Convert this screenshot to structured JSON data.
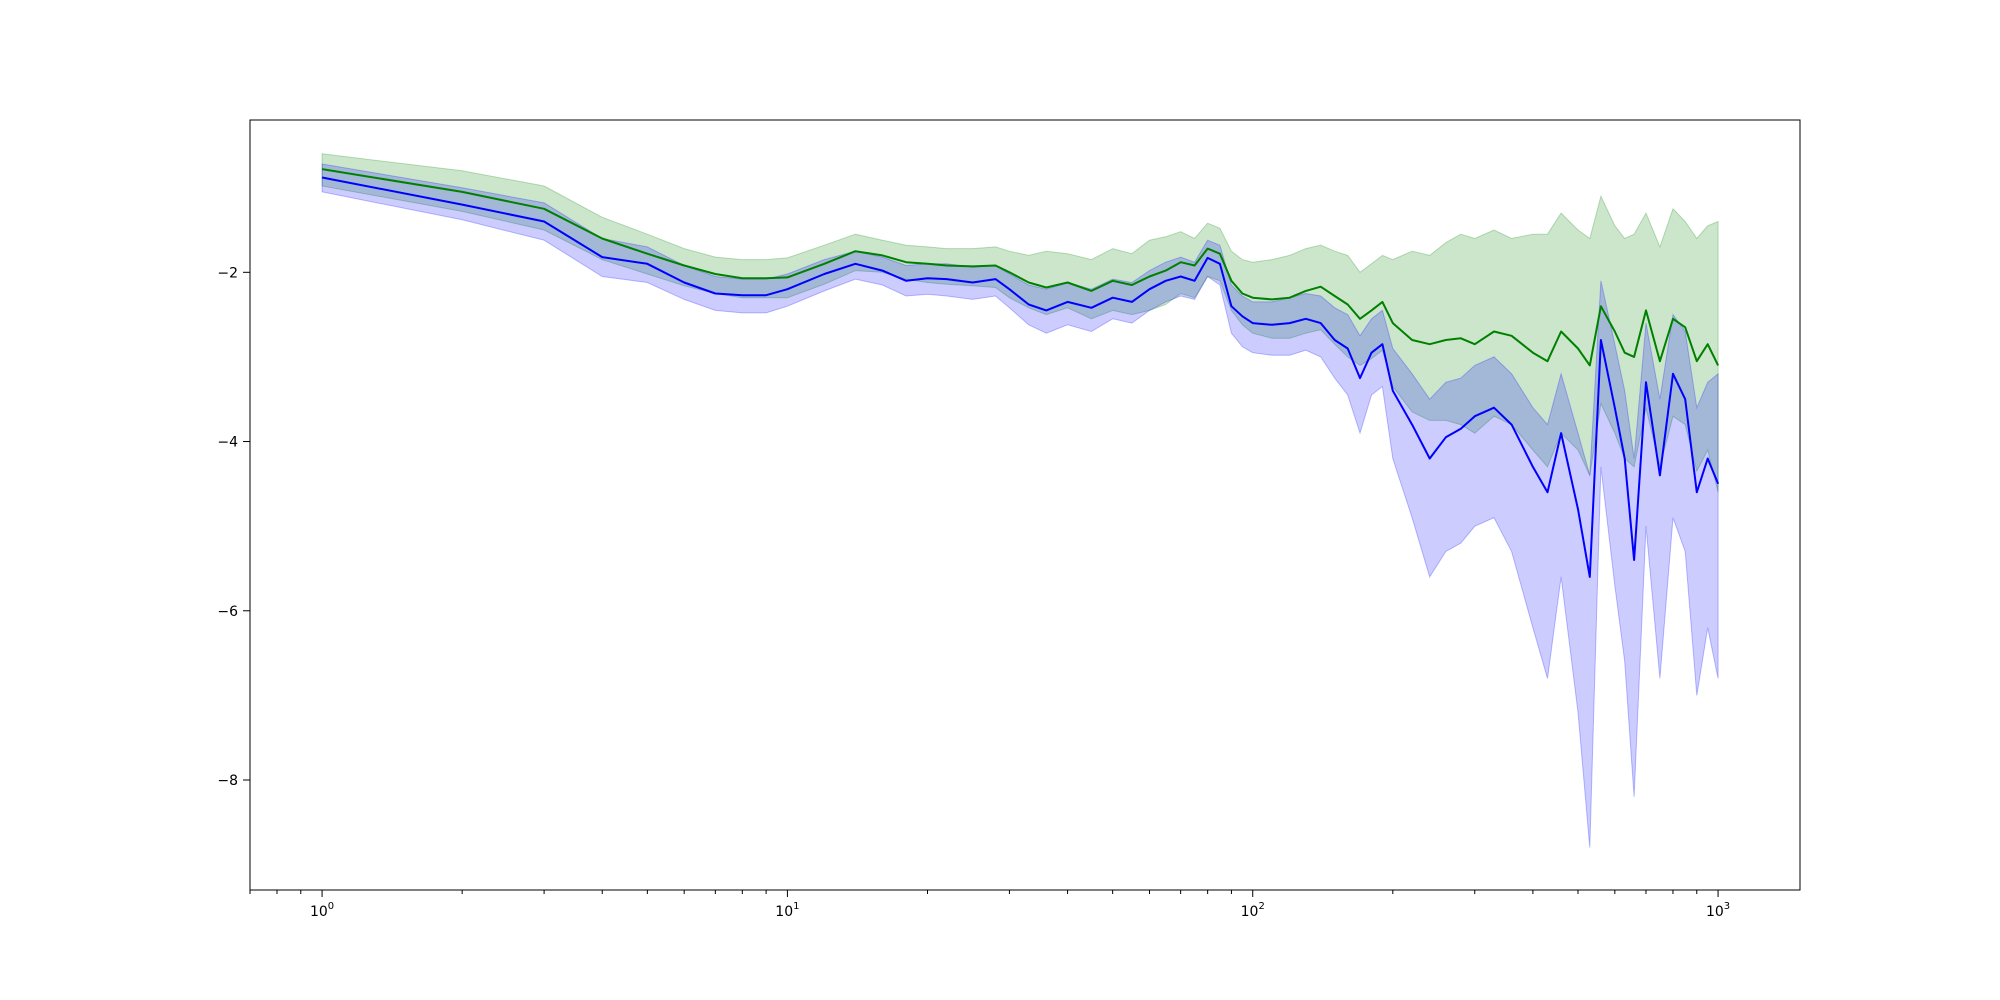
{
  "chart_data": {
    "type": "line",
    "title": "",
    "xlabel": "",
    "ylabel": "",
    "xscale": "log",
    "xlim": [
      0.7,
      1500
    ],
    "ylim": [
      -9.3,
      -0.2
    ],
    "grid": false,
    "legend": "none",
    "x_ticks": [
      {
        "value": 1,
        "base": "10",
        "exp": "0"
      },
      {
        "value": 10,
        "base": "10",
        "exp": "1"
      },
      {
        "value": 100,
        "base": "10",
        "exp": "2"
      },
      {
        "value": 1000,
        "base": "10",
        "exp": "3"
      }
    ],
    "y_ticks": [
      {
        "value": -2,
        "label": "−2"
      },
      {
        "value": -4,
        "label": "−4"
      },
      {
        "value": -6,
        "label": "−6"
      },
      {
        "value": -8,
        "label": "−8"
      }
    ],
    "series": [
      {
        "color": "#008000",
        "band_color": "#008000",
        "band_opacity": 0.2,
        "x": [
          1,
          2,
          3,
          4,
          5,
          6,
          7,
          8,
          9,
          10,
          12,
          14,
          16,
          18,
          20,
          22,
          25,
          28,
          30,
          33,
          36,
          40,
          45,
          50,
          55,
          60,
          65,
          70,
          75,
          80,
          85,
          90,
          95,
          100,
          110,
          120,
          130,
          140,
          150,
          160,
          170,
          180,
          190,
          200,
          220,
          240,
          260,
          280,
          300,
          330,
          360,
          400,
          430,
          460,
          500,
          530,
          560,
          600,
          630,
          660,
          700,
          750,
          800,
          850,
          900,
          950,
          1000
        ],
        "y": [
          -0.78,
          -1.05,
          -1.25,
          -1.6,
          -1.78,
          -1.92,
          -2.02,
          -2.07,
          -2.07,
          -2.06,
          -1.9,
          -1.75,
          -1.8,
          -1.88,
          -1.9,
          -1.92,
          -1.93,
          -1.92,
          -2.0,
          -2.12,
          -2.18,
          -2.12,
          -2.22,
          -2.1,
          -2.15,
          -2.05,
          -1.98,
          -1.88,
          -1.92,
          -1.72,
          -1.78,
          -2.1,
          -2.25,
          -2.3,
          -2.32,
          -2.3,
          -2.22,
          -2.17,
          -2.28,
          -2.38,
          -2.55,
          -2.45,
          -2.35,
          -2.6,
          -2.8,
          -2.85,
          -2.8,
          -2.78,
          -2.85,
          -2.7,
          -2.75,
          -2.95,
          -3.05,
          -2.7,
          -2.9,
          -3.1,
          -2.4,
          -2.7,
          -2.95,
          -3.0,
          -2.45,
          -3.05,
          -2.55,
          -2.65,
          -3.05,
          -2.85,
          -3.1
        ],
        "upper": [
          -0.6,
          -0.8,
          -0.98,
          -1.35,
          -1.55,
          -1.72,
          -1.82,
          -1.85,
          -1.85,
          -1.83,
          -1.68,
          -1.55,
          -1.62,
          -1.68,
          -1.7,
          -1.72,
          -1.72,
          -1.7,
          -1.75,
          -1.8,
          -1.75,
          -1.78,
          -1.85,
          -1.72,
          -1.78,
          -1.62,
          -1.58,
          -1.52,
          -1.6,
          -1.42,
          -1.48,
          -1.75,
          -1.85,
          -1.88,
          -1.85,
          -1.8,
          -1.72,
          -1.68,
          -1.75,
          -1.8,
          -2.0,
          -1.9,
          -1.8,
          -1.85,
          -1.75,
          -1.8,
          -1.65,
          -1.55,
          -1.6,
          -1.5,
          -1.6,
          -1.55,
          -1.55,
          -1.3,
          -1.5,
          -1.6,
          -1.1,
          -1.45,
          -1.6,
          -1.55,
          -1.3,
          -1.7,
          -1.25,
          -1.4,
          -1.6,
          -1.45,
          -1.4
        ],
        "lower": [
          -0.98,
          -1.28,
          -1.5,
          -1.85,
          -2.02,
          -2.16,
          -2.25,
          -2.3,
          -2.3,
          -2.3,
          -2.14,
          -1.98,
          -2.0,
          -2.08,
          -2.12,
          -2.14,
          -2.16,
          -2.18,
          -2.3,
          -2.42,
          -2.5,
          -2.42,
          -2.55,
          -2.45,
          -2.5,
          -2.45,
          -2.38,
          -2.25,
          -2.3,
          -2.05,
          -2.1,
          -2.45,
          -2.62,
          -2.72,
          -2.78,
          -2.78,
          -2.72,
          -2.68,
          -2.85,
          -3.0,
          -3.1,
          -3.02,
          -2.92,
          -3.35,
          -3.65,
          -3.75,
          -3.75,
          -3.8,
          -3.9,
          -3.7,
          -3.8,
          -4.1,
          -4.3,
          -3.9,
          -4.1,
          -4.4,
          -3.55,
          -3.9,
          -4.2,
          -4.3,
          -3.6,
          -4.3,
          -3.7,
          -3.8,
          -4.35,
          -4.1,
          -4.6
        ]
      },
      {
        "color": "#0000ff",
        "band_color": "#0000ff",
        "band_opacity": 0.2,
        "x": [
          1,
          2,
          3,
          4,
          5,
          6,
          7,
          8,
          9,
          10,
          12,
          14,
          16,
          18,
          20,
          22,
          25,
          28,
          30,
          33,
          36,
          40,
          45,
          50,
          55,
          60,
          65,
          70,
          75,
          80,
          85,
          90,
          95,
          100,
          110,
          120,
          130,
          140,
          150,
          160,
          170,
          180,
          190,
          200,
          220,
          240,
          260,
          280,
          300,
          330,
          360,
          400,
          430,
          460,
          500,
          530,
          560,
          600,
          630,
          660,
          700,
          750,
          800,
          850,
          900,
          950,
          1000
        ],
        "y": [
          -0.88,
          -1.2,
          -1.4,
          -1.82,
          -1.9,
          -2.12,
          -2.25,
          -2.27,
          -2.27,
          -2.2,
          -2.02,
          -1.9,
          -1.98,
          -2.1,
          -2.07,
          -2.08,
          -2.12,
          -2.08,
          -2.2,
          -2.38,
          -2.45,
          -2.35,
          -2.42,
          -2.3,
          -2.35,
          -2.2,
          -2.1,
          -2.05,
          -2.1,
          -1.83,
          -1.9,
          -2.4,
          -2.52,
          -2.6,
          -2.62,
          -2.6,
          -2.55,
          -2.6,
          -2.8,
          -2.9,
          -3.25,
          -2.95,
          -2.85,
          -3.4,
          -3.8,
          -4.2,
          -3.95,
          -3.85,
          -3.7,
          -3.6,
          -3.8,
          -4.3,
          -4.6,
          -3.9,
          -4.8,
          -5.6,
          -2.8,
          -3.6,
          -4.2,
          -5.4,
          -3.3,
          -4.4,
          -3.2,
          -3.5,
          -4.6,
          -4.2,
          -4.5
        ],
        "upper": [
          -0.72,
          -1.0,
          -1.18,
          -1.6,
          -1.7,
          -1.92,
          -2.05,
          -2.08,
          -2.08,
          -2.02,
          -1.85,
          -1.75,
          -1.82,
          -1.92,
          -1.9,
          -1.9,
          -1.94,
          -1.92,
          -2.02,
          -2.15,
          -2.2,
          -2.12,
          -2.2,
          -2.08,
          -2.12,
          -1.98,
          -1.88,
          -1.82,
          -1.88,
          -1.62,
          -1.68,
          -2.15,
          -2.28,
          -2.35,
          -2.35,
          -2.3,
          -2.25,
          -2.28,
          -2.42,
          -2.5,
          -2.75,
          -2.55,
          -2.45,
          -2.9,
          -3.2,
          -3.5,
          -3.3,
          -3.25,
          -3.1,
          -3.0,
          -3.2,
          -3.6,
          -3.8,
          -3.2,
          -3.9,
          -4.4,
          -2.1,
          -2.85,
          -3.4,
          -4.2,
          -2.6,
          -3.5,
          -2.5,
          -2.7,
          -3.6,
          -3.3,
          -3.2
        ],
        "lower": [
          -1.05,
          -1.38,
          -1.62,
          -2.05,
          -2.12,
          -2.32,
          -2.45,
          -2.48,
          -2.48,
          -2.4,
          -2.22,
          -2.08,
          -2.15,
          -2.28,
          -2.26,
          -2.28,
          -2.32,
          -2.28,
          -2.42,
          -2.62,
          -2.72,
          -2.62,
          -2.7,
          -2.55,
          -2.6,
          -2.45,
          -2.35,
          -2.28,
          -2.32,
          -2.05,
          -2.15,
          -2.72,
          -2.88,
          -2.95,
          -2.98,
          -2.98,
          -2.92,
          -3.0,
          -3.25,
          -3.45,
          -3.9,
          -3.45,
          -3.35,
          -4.2,
          -4.9,
          -5.6,
          -5.3,
          -5.2,
          -5.0,
          -4.9,
          -5.3,
          -6.2,
          -6.8,
          -5.6,
          -7.2,
          -8.8,
          -4.3,
          -5.7,
          -6.6,
          -8.2,
          -5.0,
          -6.8,
          -4.9,
          -5.3,
          -7.0,
          -6.2,
          -6.8
        ]
      }
    ]
  }
}
